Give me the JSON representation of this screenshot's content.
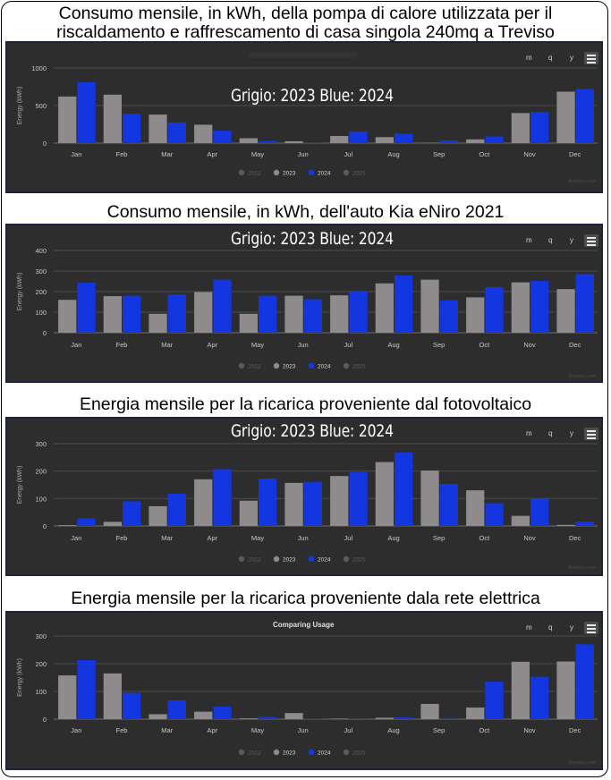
{
  "colors": {
    "gray": "#8f8a8c",
    "blue": "#1336e0",
    "legend_dim": "#5a5a5a",
    "legend_gray": "#8f8a8c",
    "legend_blue": "#1336e0"
  },
  "range_options": [
    "m",
    "q",
    "y"
  ],
  "legend": [
    {
      "label": "2022",
      "color": "#5a5a5a",
      "dim": true
    },
    {
      "label": "2023",
      "color": "#8f8a8c",
      "dim": false
    },
    {
      "label": "2024",
      "color": "#1336e0",
      "dim": false
    },
    {
      "label": "2025",
      "color": "#5a5a5a",
      "dim": true
    }
  ],
  "watermark": "Emonics.com",
  "charts": [
    {
      "heading": "Consumo mensile, in kWh, della pompa di calore utilizzata per il riscaldamento e raffrescamento di casa singola 240mq a Treviso",
      "heading_line1": "Consumo mensile, in kWh, della pompa di calore utilizzata per il",
      "heading_line2": "riscaldamento e raffrescamento di casa singola 240mq a Treviso",
      "note": "Grigio: 2023  Blue: 2024",
      "panel_title": ""
    },
    {
      "heading": "Consumo mensile, in kWh, dell'auto Kia eNiro 2021",
      "note": "Grigio: 2023  Blue: 2024",
      "panel_title": ""
    },
    {
      "heading": "Energia mensile per la ricarica proveniente dal fotovoltaico",
      "note": "Grigio: 2023  Blue: 2024",
      "panel_title": ""
    },
    {
      "heading": "Energia mensile per la ricarica proveniente dala rete elettrica",
      "note": "",
      "panel_title": "Comparing Usage"
    }
  ],
  "chart_data": [
    {
      "type": "bar",
      "title": "Consumo mensile, in kWh, della pompa di calore utilizzata per il riscaldamento e raffrescamento di casa singola 240mq a Treviso",
      "ylabel": "Energy (kWh)",
      "ylim": [
        0,
        1000
      ],
      "yticks": [
        0,
        500,
        1000
      ],
      "categories": [
        "Jan",
        "Feb",
        "Mar",
        "Apr",
        "May",
        "Jun",
        "Jul",
        "Aug",
        "Sep",
        "Oct",
        "Nov",
        "Dec"
      ],
      "series": [
        {
          "name": "2023",
          "values": [
            620,
            645,
            380,
            245,
            65,
            25,
            95,
            80,
            5,
            50,
            400,
            685
          ]
        },
        {
          "name": "2024",
          "values": [
            810,
            390,
            275,
            165,
            30,
            10,
            155,
            125,
            35,
            90,
            415,
            720
          ]
        }
      ]
    },
    {
      "type": "bar",
      "title": "Consumo mensile, in kWh, dell'auto Kia eNiro 2021",
      "ylabel": "Energy (kWh)",
      "ylim": [
        0,
        400
      ],
      "yticks": [
        0,
        100,
        200,
        300,
        400
      ],
      "categories": [
        "Jan",
        "Feb",
        "Mar",
        "Apr",
        "May",
        "Jun",
        "Jul",
        "Aug",
        "Sep",
        "Oct",
        "Nov",
        "Dec"
      ],
      "series": [
        {
          "name": "2023",
          "values": [
            160,
            178,
            92,
            198,
            92,
            180,
            182,
            240,
            258,
            172,
            245,
            212
          ]
        },
        {
          "name": "2024",
          "values": [
            243,
            180,
            185,
            258,
            180,
            163,
            200,
            278,
            158,
            222,
            252,
            285
          ]
        }
      ]
    },
    {
      "type": "bar",
      "title": "Energia mensile per la ricarica proveniente dal fotovoltaico",
      "ylabel": "Energy (kWh)",
      "ylim": [
        0,
        300
      ],
      "yticks": [
        0,
        100,
        200,
        300
      ],
      "categories": [
        "Jan",
        "Feb",
        "Mar",
        "Apr",
        "May",
        "Jun",
        "Jul",
        "Aug",
        "Sep",
        "Oct",
        "Nov",
        "Dec"
      ],
      "series": [
        {
          "name": "2023",
          "values": [
            3,
            15,
            72,
            170,
            92,
            157,
            182,
            233,
            202,
            130,
            37,
            4
          ]
        },
        {
          "name": "2024",
          "values": [
            28,
            90,
            118,
            207,
            173,
            161,
            197,
            268,
            153,
            83,
            98,
            15
          ]
        }
      ]
    },
    {
      "type": "bar",
      "title": "Energia mensile per la ricarica proveniente dala rete elettrica",
      "subtitle": "Comparing Usage",
      "ylabel": "Energy (kWh)",
      "ylim": [
        0,
        300
      ],
      "yticks": [
        0,
        100,
        200,
        300
      ],
      "categories": [
        "Jan",
        "Feb",
        "Mar",
        "Apr",
        "May",
        "Jun",
        "Jul",
        "Aug",
        "Sep",
        "Oct",
        "Nov",
        "Dec"
      ],
      "series": [
        {
          "name": "2023",
          "values": [
            158,
            165,
            18,
            27,
            3,
            22,
            2,
            5,
            55,
            42,
            207,
            208
          ]
        },
        {
          "name": "2024",
          "values": [
            213,
            95,
            68,
            45,
            8,
            2,
            1,
            7,
            4,
            135,
            153,
            270
          ]
        }
      ]
    }
  ]
}
